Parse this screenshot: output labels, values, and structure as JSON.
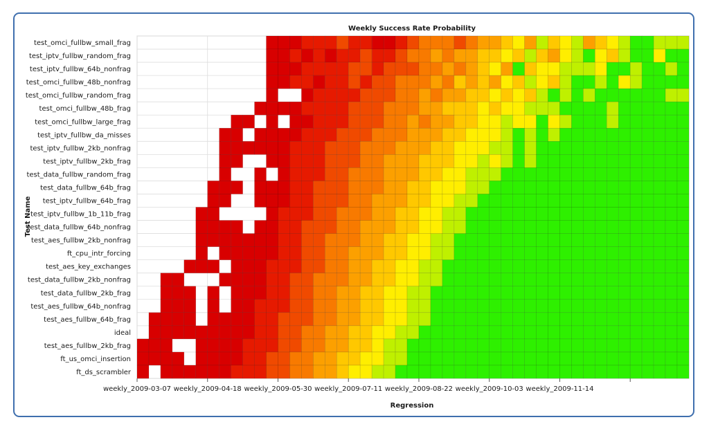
{
  "colors": {
    "frame_border": "#3f6fae",
    "scale": {
      "1": "#d80000",
      "2": "#e61a00",
      "3": "#f04a00",
      "4": "#f87a00",
      "5": "#fca000",
      "6": "#ffc800",
      "7": "#ffee00",
      "8": "#bff000",
      "9": "#2ef000",
      "10": "#009400"
    }
  },
  "chart_data": {
    "type": "heatmap",
    "title": "Weekly Success Rate Probability",
    "xlabel": "Regression",
    "ylabel": "Test Name",
    "legend": "none",
    "grid": true,
    "value_scale_note_levels": "1 = lowest success (red) … 10 = highest success (green), 0 = no data",
    "rows": [
      "test_omci_fullbw_small_frag",
      "test_iptv_fullbw_random_frag",
      "test_iptv_fullbw_64b_nonfrag",
      "test_omci_fullbw_48b_nonfrag",
      "test_omci_fullbw_random_frag",
      "test_omci_fullbw_48b_frag",
      "test_omci_fullbw_large_frag",
      "test_iptv_fullbw_da_misses",
      "test_iptv_fullbw_2kb_nonfrag",
      "test_iptv_fullbw_2kb_frag",
      "test_data_fullbw_random_frag",
      "test_data_fullbw_64b_frag",
      "test_iptv_fullbw_64b_frag",
      "test_iptv_fullbw_1b_11b_frag",
      "test_data_fullbw_64b_nonfrag",
      "test_aes_fullbw_2kb_nonfrag",
      "ft_cpu_intr_forcing",
      "test_aes_key_exchanges",
      "test_data_fullbw_2kb_nonfrag",
      "test_data_fullbw_2kb_frag",
      "test_aes_fullbw_64b_nonfrag",
      "test_aes_fullbw_64b_frag",
      "ideal",
      "test_aes_fullbw_2kb_frag",
      "ft_us_omci_insertion",
      "ft_ds_scrambler"
    ],
    "x_ticks": [
      {
        "index": 0,
        "label": "weekly_2009-03-07"
      },
      {
        "index": 6,
        "label": "weekly_2009-04-18"
      },
      {
        "index": 12,
        "label": "weekly_2009-05-30"
      },
      {
        "index": 18,
        "label": "weekly_2009-07-11"
      },
      {
        "index": 24,
        "label": "weekly_2009-08-22"
      },
      {
        "index": 30,
        "label": "weekly_2009-10-03"
      },
      {
        "index": 36,
        "label": "weekly_2009-11-14"
      },
      {
        "index": 42,
        "label": ""
      }
    ],
    "columns_count": 47,
    "values": [
      [
        0,
        0,
        0,
        0,
        0,
        0,
        0,
        0,
        0,
        0,
        0,
        1,
        1,
        1,
        2,
        2,
        2,
        3,
        2,
        2,
        1,
        1,
        2,
        3,
        4,
        4,
        4,
        3,
        4,
        5,
        5,
        6,
        7,
        5,
        8,
        6,
        7,
        8,
        5,
        6,
        7,
        8,
        9,
        9,
        8,
        8,
        8
      ],
      [
        0,
        0,
        0,
        0,
        0,
        0,
        0,
        0,
        0,
        0,
        0,
        1,
        1,
        2,
        1,
        2,
        1,
        2,
        2,
        3,
        2,
        2,
        3,
        4,
        4,
        5,
        4,
        5,
        5,
        6,
        6,
        7,
        6,
        8,
        6,
        5,
        7,
        8,
        9,
        7,
        6,
        8,
        9,
        9,
        7,
        9,
        9
      ],
      [
        0,
        0,
        0,
        0,
        0,
        0,
        0,
        0,
        0,
        0,
        0,
        1,
        1,
        1,
        2,
        2,
        2,
        2,
        3,
        3,
        2,
        3,
        3,
        3,
        4,
        4,
        5,
        4,
        5,
        6,
        7,
        5,
        9,
        6,
        7,
        7,
        8,
        8,
        8,
        7,
        9,
        9,
        8,
        9,
        9,
        8,
        9
      ],
      [
        0,
        0,
        0,
        0,
        0,
        0,
        0,
        0,
        0,
        0,
        0,
        1,
        1,
        2,
        2,
        1,
        2,
        2,
        3,
        2,
        3,
        3,
        4,
        4,
        4,
        5,
        4,
        6,
        5,
        6,
        5,
        7,
        6,
        8,
        7,
        6,
        8,
        9,
        9,
        8,
        9,
        7,
        8,
        9,
        9,
        9,
        9
      ],
      [
        0,
        0,
        0,
        0,
        0,
        0,
        0,
        0,
        0,
        0,
        0,
        1,
        0,
        0,
        1,
        2,
        2,
        2,
        2,
        3,
        3,
        3,
        4,
        4,
        5,
        4,
        5,
        5,
        6,
        6,
        7,
        6,
        7,
        6,
        8,
        9,
        8,
        9,
        8,
        9,
        9,
        9,
        9,
        9,
        9,
        8,
        8
      ],
      [
        0,
        0,
        0,
        0,
        0,
        0,
        0,
        0,
        0,
        0,
        1,
        1,
        1,
        1,
        2,
        2,
        2,
        2,
        3,
        3,
        3,
        4,
        4,
        4,
        5,
        5,
        6,
        6,
        6,
        7,
        6,
        7,
        7,
        8,
        8,
        8,
        9,
        9,
        9,
        9,
        8,
        9,
        9,
        9,
        9,
        9,
        9
      ],
      [
        0,
        0,
        0,
        0,
        0,
        0,
        0,
        0,
        1,
        1,
        0,
        1,
        0,
        1,
        1,
        2,
        2,
        2,
        3,
        3,
        3,
        4,
        4,
        5,
        4,
        5,
        5,
        6,
        6,
        7,
        7,
        8,
        7,
        7,
        9,
        7,
        8,
        9,
        9,
        9,
        8,
        9,
        9,
        9,
        9,
        9,
        9
      ],
      [
        0,
        0,
        0,
        0,
        0,
        0,
        0,
        1,
        1,
        0,
        1,
        1,
        1,
        1,
        2,
        2,
        2,
        3,
        3,
        3,
        4,
        4,
        4,
        5,
        5,
        5,
        6,
        6,
        7,
        7,
        7,
        8,
        9,
        8,
        9,
        8,
        9,
        9,
        9,
        9,
        9,
        9,
        9,
        9,
        9,
        9,
        9
      ],
      [
        0,
        0,
        0,
        0,
        0,
        0,
        0,
        1,
        1,
        1,
        1,
        1,
        1,
        2,
        2,
        2,
        3,
        3,
        3,
        4,
        4,
        4,
        5,
        5,
        5,
        6,
        6,
        7,
        7,
        7,
        8,
        8,
        9,
        8,
        9,
        9,
        9,
        9,
        9,
        9,
        9,
        9,
        9,
        9,
        9,
        9,
        9
      ],
      [
        0,
        0,
        0,
        0,
        0,
        0,
        0,
        1,
        1,
        0,
        0,
        1,
        1,
        2,
        2,
        2,
        3,
        3,
        3,
        4,
        4,
        5,
        5,
        5,
        6,
        6,
        6,
        7,
        7,
        8,
        7,
        8,
        9,
        8,
        9,
        9,
        9,
        9,
        9,
        9,
        9,
        9,
        9,
        9,
        9,
        9,
        9
      ],
      [
        0,
        0,
        0,
        0,
        0,
        0,
        0,
        1,
        0,
        0,
        1,
        0,
        1,
        2,
        2,
        2,
        3,
        3,
        4,
        4,
        4,
        5,
        5,
        5,
        6,
        6,
        7,
        7,
        8,
        8,
        8,
        9,
        9,
        9,
        9,
        9,
        9,
        9,
        9,
        9,
        9,
        9,
        9,
        9,
        9,
        9,
        9
      ],
      [
        0,
        0,
        0,
        0,
        0,
        0,
        1,
        1,
        1,
        0,
        1,
        1,
        1,
        2,
        2,
        3,
        3,
        3,
        4,
        4,
        4,
        5,
        5,
        6,
        6,
        7,
        7,
        7,
        8,
        8,
        9,
        9,
        9,
        9,
        9,
        9,
        9,
        9,
        9,
        9,
        9,
        9,
        9,
        9,
        9,
        9,
        9
      ],
      [
        0,
        0,
        0,
        0,
        0,
        0,
        1,
        1,
        0,
        0,
        1,
        1,
        1,
        2,
        2,
        3,
        3,
        3,
        4,
        4,
        5,
        5,
        5,
        6,
        6,
        7,
        7,
        8,
        8,
        9,
        9,
        9,
        9,
        9,
        9,
        9,
        9,
        9,
        9,
        9,
        9,
        9,
        9,
        9,
        9,
        9,
        9
      ],
      [
        0,
        0,
        0,
        0,
        0,
        1,
        1,
        0,
        0,
        0,
        0,
        1,
        2,
        2,
        2,
        3,
        3,
        4,
        4,
        4,
        5,
        5,
        6,
        6,
        7,
        7,
        8,
        8,
        9,
        9,
        9,
        9,
        9,
        9,
        9,
        9,
        9,
        9,
        9,
        9,
        9,
        9,
        9,
        9,
        9,
        9,
        9
      ],
      [
        0,
        0,
        0,
        0,
        0,
        1,
        1,
        1,
        1,
        0,
        1,
        1,
        2,
        2,
        3,
        3,
        3,
        4,
        4,
        5,
        5,
        5,
        6,
        6,
        7,
        7,
        8,
        8,
        9,
        9,
        9,
        9,
        9,
        9,
        9,
        9,
        9,
        9,
        9,
        9,
        9,
        9,
        9,
        9,
        9,
        9,
        9
      ],
      [
        0,
        0,
        0,
        0,
        0,
        1,
        1,
        1,
        1,
        1,
        1,
        1,
        2,
        2,
        3,
        3,
        4,
        4,
        4,
        5,
        5,
        6,
        6,
        7,
        7,
        8,
        8,
        9,
        9,
        9,
        9,
        9,
        9,
        9,
        9,
        9,
        9,
        9,
        9,
        9,
        9,
        9,
        9,
        9,
        9,
        9,
        9
      ],
      [
        0,
        0,
        0,
        0,
        0,
        1,
        0,
        1,
        1,
        1,
        1,
        1,
        2,
        2,
        3,
        3,
        4,
        4,
        5,
        5,
        5,
        6,
        6,
        7,
        7,
        8,
        8,
        9,
        9,
        9,
        9,
        9,
        9,
        9,
        9,
        9,
        9,
        9,
        9,
        9,
        9,
        9,
        9,
        9,
        9,
        9,
        9
      ],
      [
        0,
        0,
        0,
        0,
        1,
        1,
        1,
        0,
        1,
        1,
        1,
        2,
        2,
        2,
        3,
        3,
        4,
        4,
        5,
        5,
        6,
        6,
        7,
        7,
        8,
        8,
        9,
        9,
        9,
        9,
        9,
        9,
        9,
        9,
        9,
        9,
        9,
        9,
        9,
        9,
        9,
        9,
        9,
        9,
        9,
        9,
        9
      ],
      [
        0,
        0,
        1,
        1,
        0,
        0,
        0,
        1,
        1,
        1,
        1,
        2,
        2,
        3,
        3,
        4,
        4,
        4,
        5,
        5,
        6,
        6,
        7,
        7,
        8,
        8,
        9,
        9,
        9,
        9,
        9,
        9,
        9,
        9,
        9,
        9,
        9,
        9,
        9,
        9,
        9,
        9,
        9,
        9,
        9,
        9,
        9
      ],
      [
        0,
        0,
        1,
        1,
        1,
        0,
        1,
        0,
        1,
        1,
        1,
        2,
        2,
        3,
        3,
        4,
        4,
        5,
        5,
        6,
        6,
        7,
        7,
        8,
        8,
        9,
        9,
        9,
        9,
        9,
        9,
        9,
        9,
        9,
        9,
        9,
        9,
        9,
        9,
        9,
        9,
        9,
        9,
        9,
        9,
        9,
        9
      ],
      [
        0,
        0,
        1,
        1,
        1,
        0,
        1,
        0,
        1,
        1,
        2,
        2,
        2,
        3,
        3,
        4,
        4,
        5,
        5,
        6,
        6,
        7,
        7,
        8,
        8,
        9,
        9,
        9,
        9,
        9,
        9,
        9,
        9,
        9,
        9,
        9,
        9,
        9,
        9,
        9,
        9,
        9,
        9,
        9,
        9,
        9,
        9
      ],
      [
        0,
        1,
        1,
        1,
        1,
        0,
        1,
        1,
        1,
        1,
        2,
        2,
        3,
        3,
        3,
        4,
        4,
        5,
        5,
        6,
        6,
        7,
        7,
        8,
        8,
        9,
        9,
        9,
        9,
        9,
        9,
        9,
        9,
        9,
        9,
        9,
        9,
        9,
        9,
        9,
        9,
        9,
        9,
        9,
        9,
        9,
        9
      ],
      [
        0,
        1,
        1,
        1,
        1,
        1,
        1,
        1,
        1,
        1,
        2,
        2,
        3,
        3,
        4,
        4,
        5,
        5,
        6,
        6,
        7,
        7,
        8,
        8,
        9,
        9,
        9,
        9,
        9,
        9,
        9,
        9,
        9,
        9,
        9,
        9,
        9,
        9,
        9,
        9,
        9,
        9,
        9,
        9,
        9,
        9,
        9
      ],
      [
        1,
        1,
        1,
        0,
        0,
        1,
        1,
        1,
        1,
        2,
        2,
        2,
        3,
        3,
        4,
        4,
        5,
        5,
        6,
        6,
        7,
        8,
        8,
        9,
        9,
        9,
        9,
        9,
        9,
        9,
        9,
        9,
        9,
        9,
        9,
        9,
        9,
        9,
        9,
        9,
        9,
        9,
        9,
        9,
        9,
        9,
        9
      ],
      [
        1,
        1,
        1,
        1,
        0,
        1,
        1,
        1,
        1,
        2,
        2,
        3,
        3,
        4,
        4,
        5,
        5,
        6,
        6,
        7,
        7,
        8,
        8,
        9,
        9,
        9,
        9,
        9,
        9,
        9,
        9,
        9,
        9,
        9,
        9,
        9,
        9,
        9,
        9,
        9,
        9,
        9,
        9,
        9,
        9,
        9,
        9
      ],
      [
        1,
        0,
        1,
        1,
        1,
        1,
        1,
        1,
        2,
        2,
        2,
        3,
        3,
        4,
        4,
        5,
        5,
        6,
        7,
        7,
        8,
        8,
        9,
        9,
        9,
        9,
        9,
        9,
        9,
        9,
        9,
        9,
        9,
        9,
        9,
        9,
        9,
        9,
        9,
        9,
        9,
        9,
        9,
        9,
        9,
        9,
        9
      ]
    ]
  }
}
